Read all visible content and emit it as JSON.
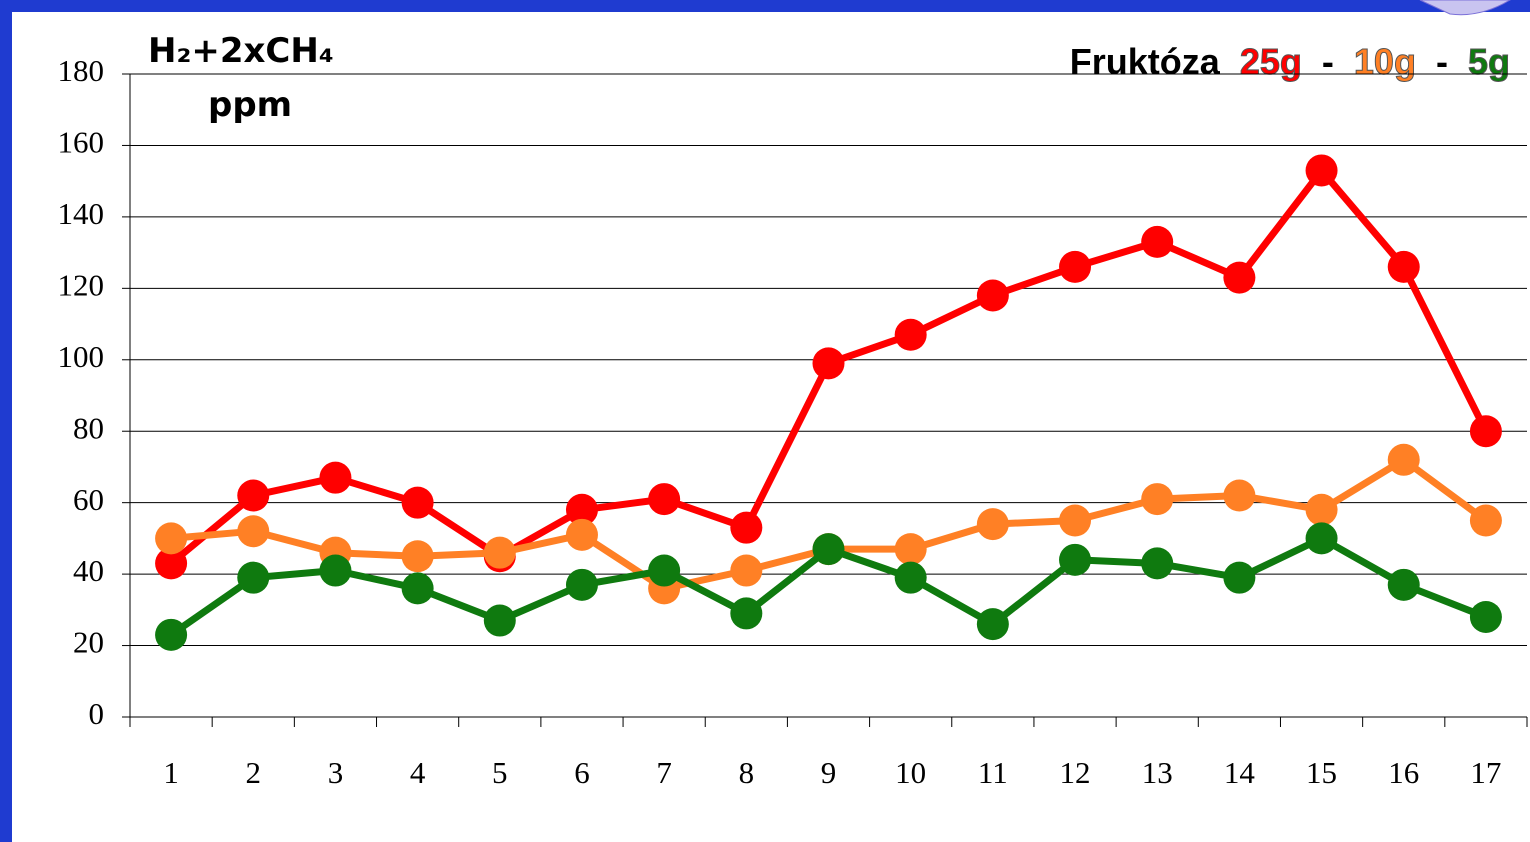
{
  "chart_data": {
    "type": "line",
    "title": "Fruktóza",
    "title_separator": "-",
    "y_label": "H₂+2xCH₄",
    "y_unit": "ppm",
    "categories": [
      "1",
      "2",
      "3",
      "4",
      "5",
      "6",
      "7",
      "8",
      "9",
      "10",
      "11",
      "12",
      "13",
      "14",
      "15",
      "16",
      "17"
    ],
    "series": [
      {
        "name": "25g",
        "color": "#ff0000",
        "values": [
          43,
          62,
          67,
          60,
          45,
          58,
          61,
          53,
          99,
          107,
          118,
          126,
          133,
          123,
          153,
          126,
          80
        ]
      },
      {
        "name": "10g",
        "color": "#ff8025",
        "values": [
          50,
          52,
          46,
          45,
          46,
          51,
          36,
          41,
          47,
          47,
          54,
          55,
          61,
          62,
          58,
          72,
          55
        ]
      },
      {
        "name": "5g",
        "color": "#0f7a0f",
        "values": [
          23,
          39,
          41,
          36,
          27,
          37,
          41,
          29,
          47,
          39,
          26,
          44,
          43,
          39,
          50,
          37,
          28
        ]
      }
    ],
    "ylim": [
      0,
      180
    ],
    "yticks": [
      0,
      20,
      40,
      60,
      80,
      100,
      120,
      140,
      160,
      180
    ],
    "grid": true
  }
}
